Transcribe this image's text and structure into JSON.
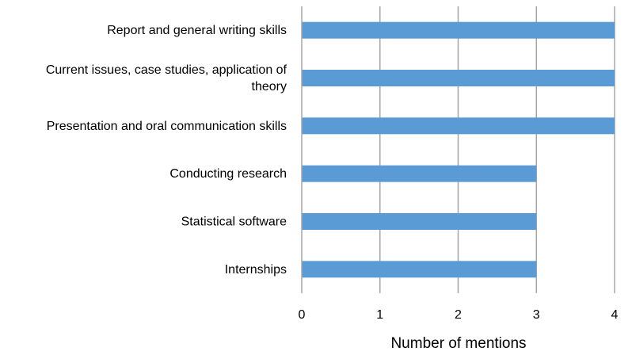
{
  "chart_data": {
    "type": "bar",
    "orientation": "horizontal",
    "categories": [
      "Report and general writing skills",
      "Current issues, case studies, application of theory",
      "Presentation and oral communication skills",
      "Conducting research",
      "Statistical software",
      "Internships"
    ],
    "category_label_lines": [
      [
        "Report and general writing skills"
      ],
      [
        "Current issues, case studies, application of",
        "theory"
      ],
      [
        "Presentation and oral communication skills"
      ],
      [
        "Conducting research"
      ],
      [
        "Statistical software"
      ],
      [
        "Internships"
      ]
    ],
    "values": [
      4,
      4,
      4,
      3,
      3,
      3
    ],
    "xlabel": "Number of mentions",
    "ylabel": "",
    "xlim": [
      0,
      4
    ],
    "xticks": [
      "0",
      "1",
      "2",
      "3",
      "4"
    ],
    "grid": "vertical",
    "legend": "none",
    "colors": {
      "bar": "#5b9bd5",
      "grid": "#a6a6a6",
      "axis": "#a6a6a6"
    }
  }
}
